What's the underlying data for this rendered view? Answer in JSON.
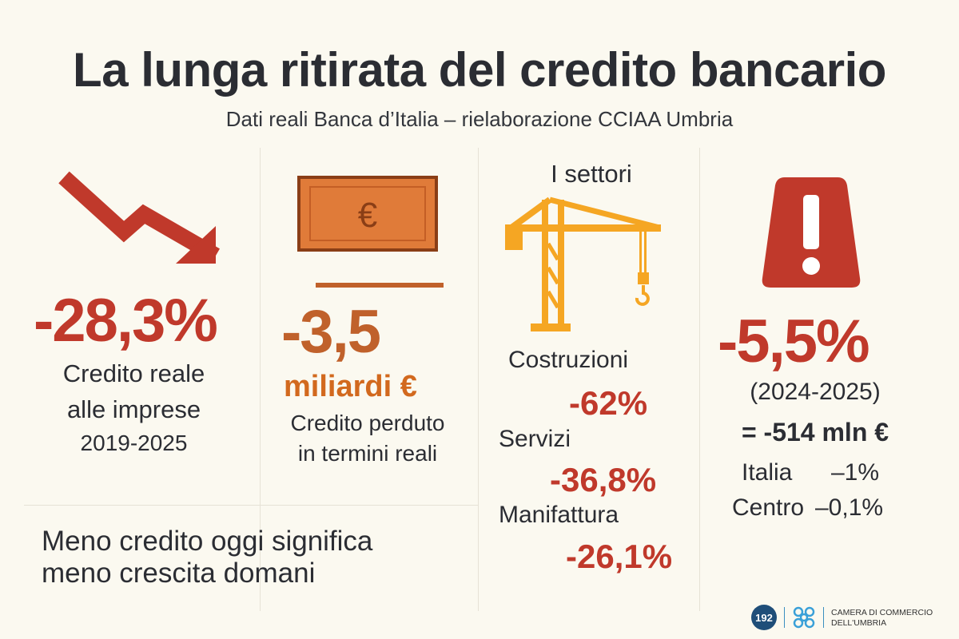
{
  "header": {
    "title": "La lunga ritirata del credito bancario",
    "subtitle": "Dati reali Banca d’Italia – rielaborazione CCIAA Umbria"
  },
  "colors": {
    "red": "#c0392b",
    "orange": "#d2691e",
    "crane": "#f5a623",
    "text": "#2b2d33",
    "background": "#fbf9f0"
  },
  "col1": {
    "icon": "trend-down-arrow-icon",
    "value": "-28,3%",
    "line1": "Credito reale",
    "line2": "alle imprese",
    "period": "2019-2025"
  },
  "col2": {
    "icon": "euro-banknote-icon",
    "value": "-3,5",
    "unit": "miliardi €",
    "line1": "Credito perduto",
    "line2": "in termini reali"
  },
  "col3": {
    "heading": "I settori",
    "icon": "crane-icon",
    "sectors": [
      {
        "name": "Costruzioni",
        "value": "-62%"
      },
      {
        "name": "Servizi",
        "value": "-36,8%"
      },
      {
        "name": "Manifattura",
        "value": "-26,1%"
      }
    ]
  },
  "col4": {
    "icon": "warning-icon",
    "value": "-5,5%",
    "period": "(2024-2025)",
    "amount": "= -514 mln €",
    "comparisons": [
      {
        "label": "Italia",
        "value": "–1%"
      },
      {
        "label": "Centro",
        "value": "–0,1%"
      }
    ]
  },
  "footer": {
    "line1": "Meno credito oggi significa",
    "line2": "meno crescita domani",
    "badge": "192",
    "logo_text1": "CAMERA DI COMMERCIO",
    "logo_text2": "DELL'UMBRIA"
  }
}
